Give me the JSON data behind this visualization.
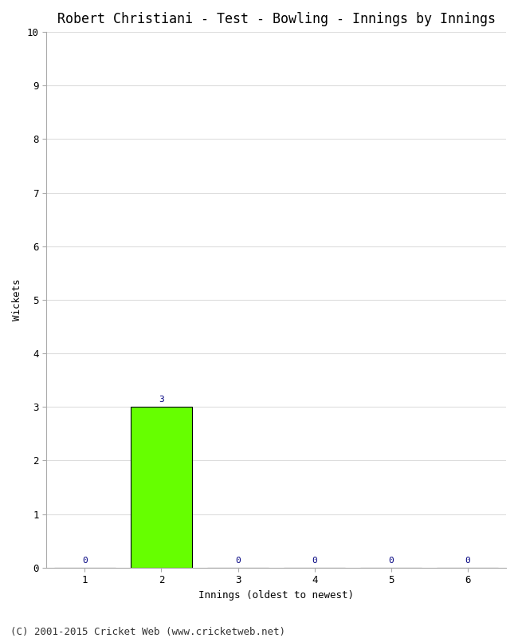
{
  "title": "Robert Christiani - Test - Bowling - Innings by Innings",
  "xlabel": "Innings (oldest to newest)",
  "ylabel": "Wickets",
  "categories": [
    1,
    2,
    3,
    4,
    5,
    6
  ],
  "values": [
    0,
    3,
    0,
    0,
    0,
    0
  ],
  "bar_color": "#66ff00",
  "bar_edge_color": "#000000",
  "label_color": "#000080",
  "ylim": [
    0,
    10
  ],
  "yticks": [
    0,
    1,
    2,
    3,
    4,
    5,
    6,
    7,
    8,
    9,
    10
  ],
  "background_color": "#ffffff",
  "grid_color": "#dddddd",
  "footer": "(C) 2001-2015 Cricket Web (www.cricketweb.net)",
  "title_fontsize": 12,
  "axis_label_fontsize": 9,
  "tick_fontsize": 9,
  "bar_label_fontsize": 8,
  "footer_fontsize": 9
}
